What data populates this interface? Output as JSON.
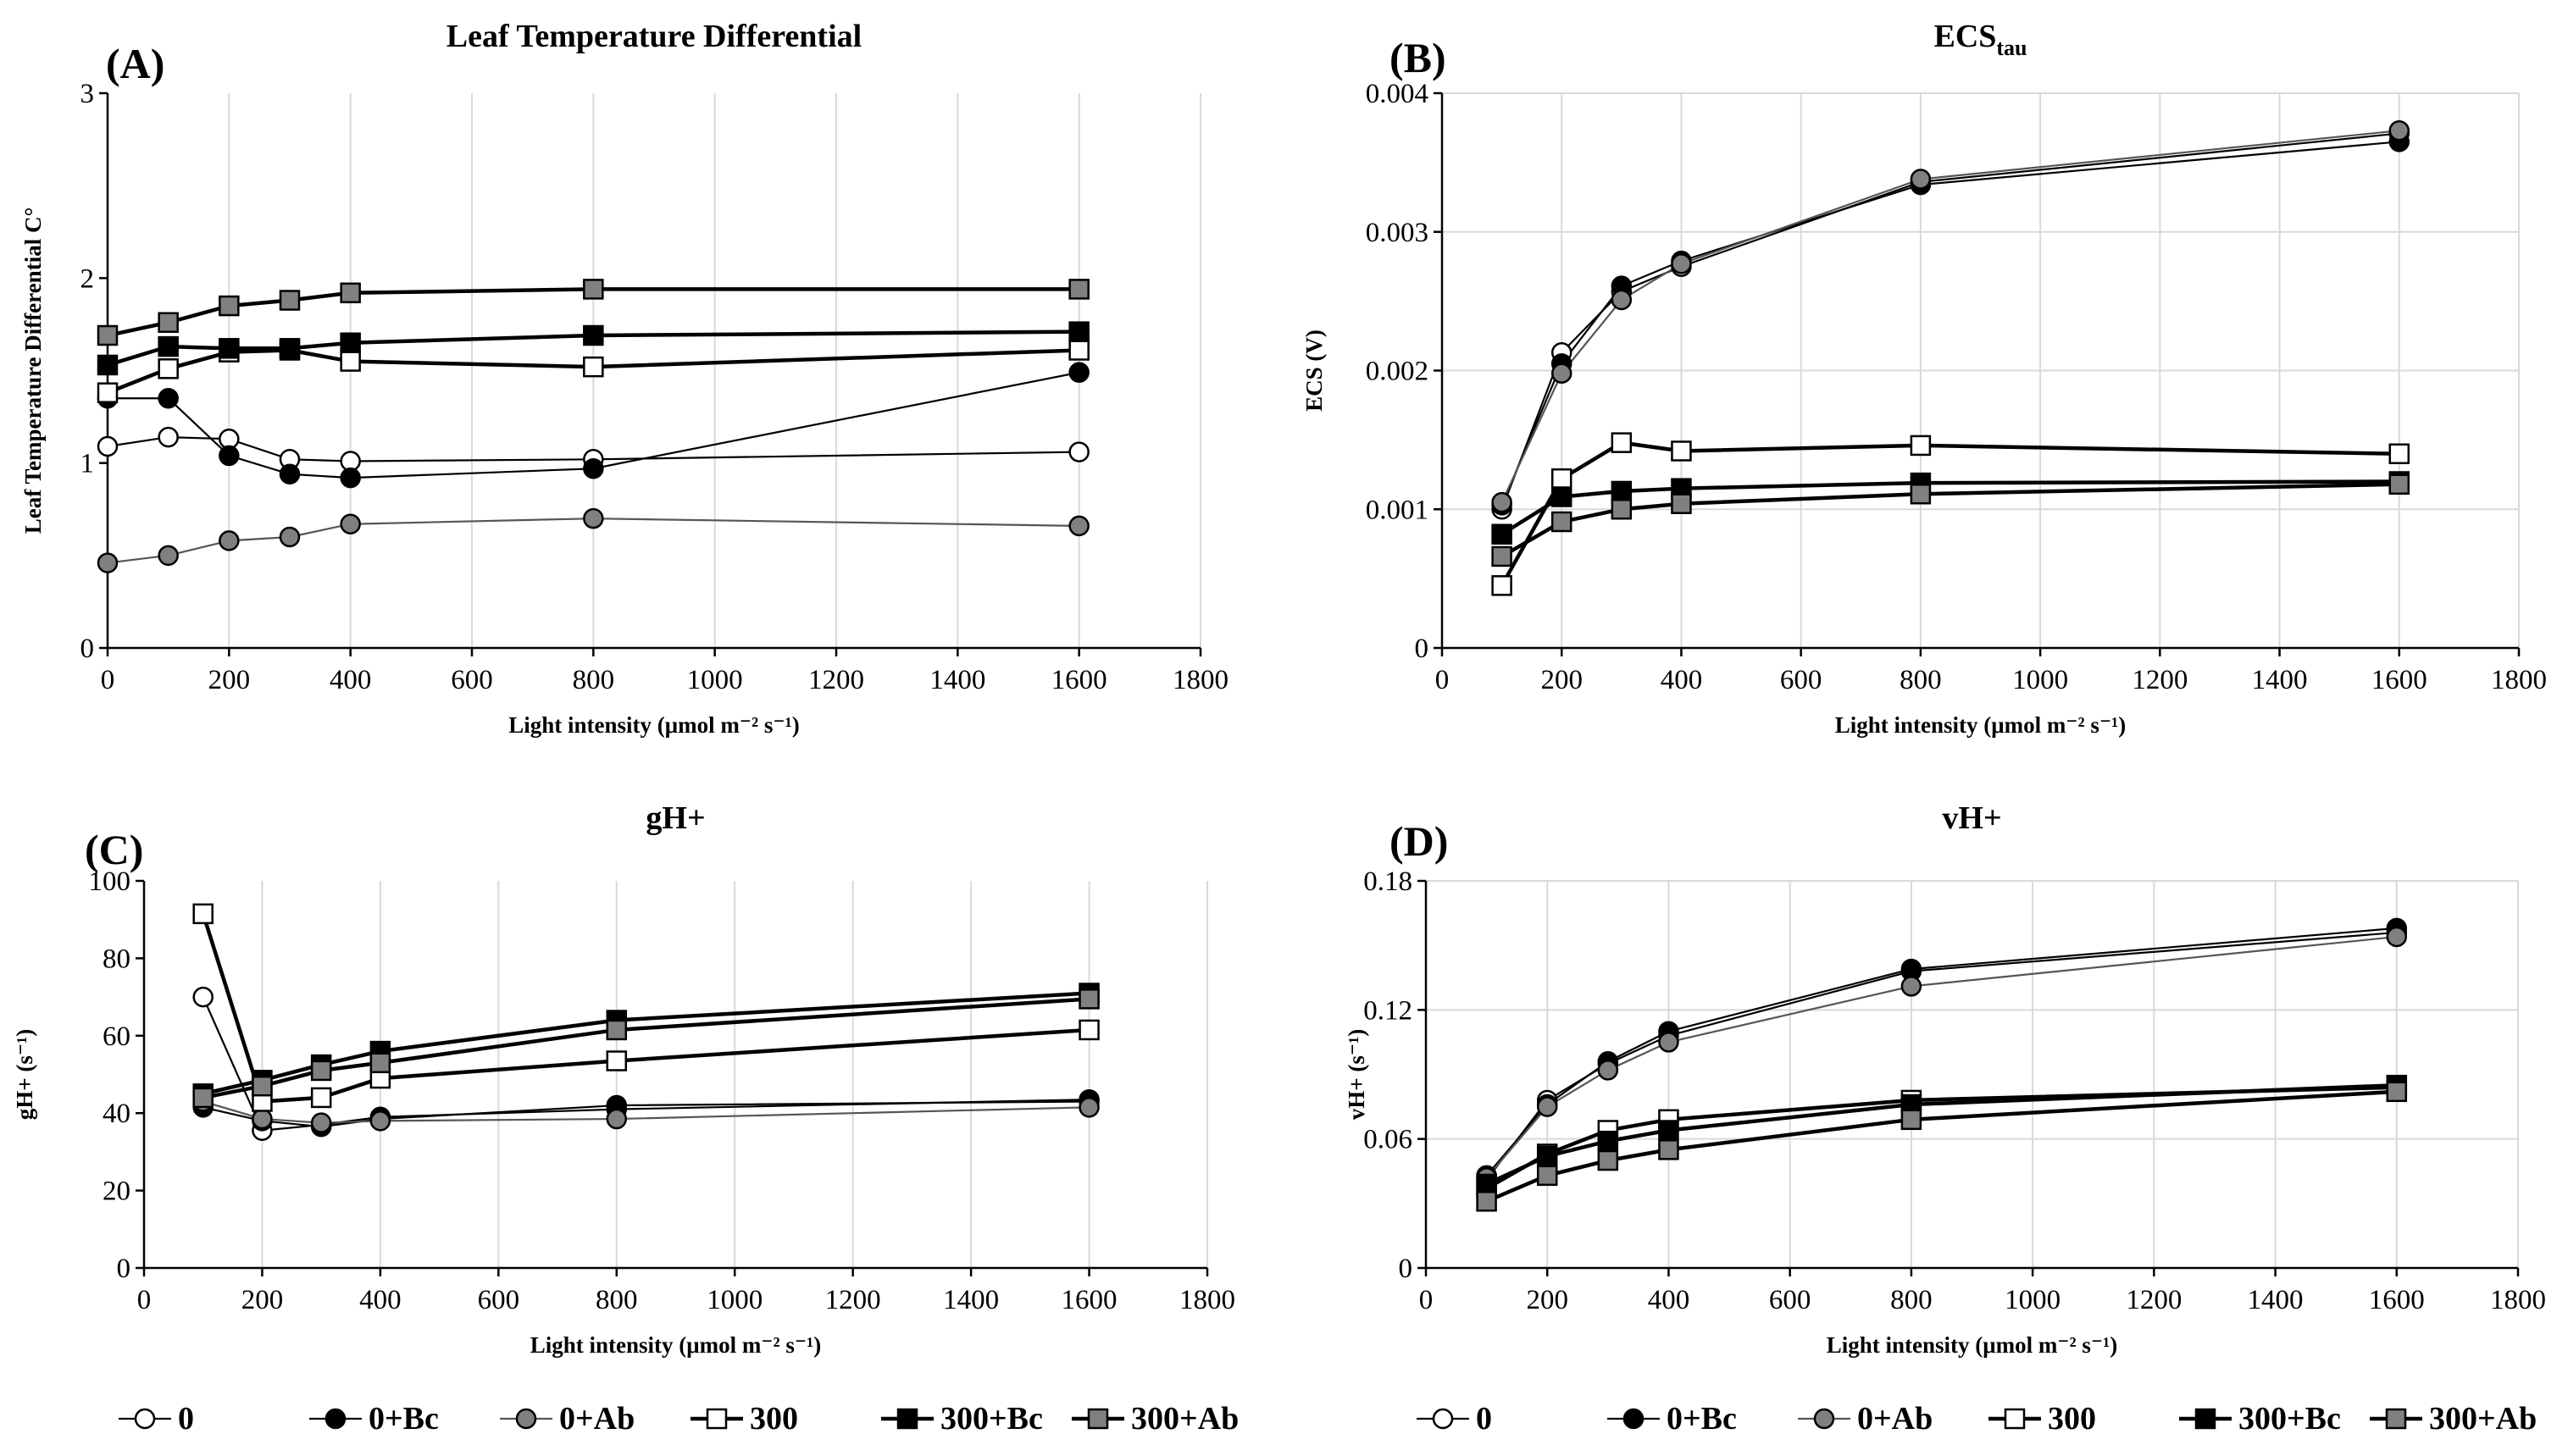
{
  "figure": {
    "legend_items": [
      "0",
      "0+Bc",
      "0+Ab",
      "300",
      "300+Bc",
      "300+Ab"
    ]
  },
  "series_styles": {
    "0": {
      "marker": "circle",
      "fill": "#ffffff",
      "line": "#000000"
    },
    "0+Bc": {
      "marker": "circle",
      "fill": "#000000",
      "line": "#000000"
    },
    "0+Ab": {
      "marker": "circle",
      "fill": "#808080",
      "line": "#555555"
    },
    "300": {
      "marker": "square",
      "fill": "#ffffff",
      "line": "#000000"
    },
    "300+Bc": {
      "marker": "square",
      "fill": "#000000",
      "line": "#000000"
    },
    "300+Ab": {
      "marker": "square",
      "fill": "#808080",
      "line": "#000000"
    }
  },
  "chart_data": [
    {
      "panel": "(A)",
      "type": "line",
      "title": "Leaf Temperature  Differential",
      "title_sub": "",
      "xlabel": "Light intensity (μmol m⁻² s⁻¹)",
      "ylabel": "Leaf Temperature Differential C°",
      "xlim": [
        0,
        1800
      ],
      "ylim": [
        0,
        3
      ],
      "xticks": [
        0,
        200,
        400,
        600,
        800,
        1000,
        1200,
        1400,
        1600,
        1800
      ],
      "yticks": [
        0,
        1,
        2,
        3
      ],
      "grid": "vertical",
      "series": [
        {
          "name": "0",
          "x": [
            0,
            100,
            200,
            300,
            400,
            800,
            1600
          ],
          "y": [
            1.09,
            1.14,
            1.13,
            1.02,
            1.01,
            1.02,
            1.06
          ]
        },
        {
          "name": "0+Bc",
          "x": [
            0,
            100,
            200,
            300,
            400,
            800,
            1600
          ],
          "y": [
            1.35,
            1.35,
            1.04,
            0.94,
            0.92,
            0.97,
            1.49
          ]
        },
        {
          "name": "0+Ab",
          "x": [
            0,
            100,
            200,
            300,
            400,
            800,
            1600
          ],
          "y": [
            0.46,
            0.5,
            0.58,
            0.6,
            0.67,
            0.7,
            0.66
          ]
        },
        {
          "name": "300",
          "x": [
            0,
            100,
            200,
            300,
            400,
            800,
            1600
          ],
          "y": [
            1.38,
            1.51,
            1.6,
            1.61,
            1.55,
            1.52,
            1.61
          ]
        },
        {
          "name": "300+Bc",
          "x": [
            0,
            100,
            200,
            300,
            400,
            800,
            1600
          ],
          "y": [
            1.53,
            1.63,
            1.62,
            1.62,
            1.65,
            1.69,
            1.71
          ]
        },
        {
          "name": "300+Ab",
          "x": [
            0,
            100,
            200,
            300,
            400,
            800,
            1600
          ],
          "y": [
            1.69,
            1.76,
            1.85,
            1.88,
            1.92,
            1.94,
            1.94
          ]
        }
      ]
    },
    {
      "panel": "(B)",
      "type": "line",
      "title": "ECS",
      "title_sub": "tau",
      "xlabel": "Light intensity (μmol m⁻² s⁻¹)",
      "ylabel": "ECS (V)",
      "xlim": [
        0,
        1800
      ],
      "ylim": [
        0,
        0.004
      ],
      "xticks": [
        0,
        200,
        400,
        600,
        800,
        1000,
        1200,
        1400,
        1600,
        1800
      ],
      "yticks": [
        0,
        0.001,
        0.002,
        0.003,
        0.004
      ],
      "grid": "both",
      "series": [
        {
          "name": "0",
          "x": [
            100,
            200,
            300,
            400,
            800,
            1600
          ],
          "y": [
            0.001,
            0.00213,
            0.00257,
            0.00275,
            0.00336,
            0.00371
          ]
        },
        {
          "name": "0+Bc",
          "x": [
            100,
            200,
            300,
            400,
            800,
            1600
          ],
          "y": [
            0.00103,
            0.00205,
            0.00261,
            0.00279,
            0.00334,
            0.00365
          ]
        },
        {
          "name": "0+Ab",
          "x": [
            100,
            200,
            300,
            400,
            800,
            1600
          ],
          "y": [
            0.00105,
            0.00198,
            0.00251,
            0.00277,
            0.00338,
            0.00373
          ]
        },
        {
          "name": "300",
          "x": [
            100,
            200,
            300,
            400,
            800,
            1600
          ],
          "y": [
            0.00045,
            0.00122,
            0.00148,
            0.00142,
            0.00146,
            0.0014
          ]
        },
        {
          "name": "300+Bc",
          "x": [
            100,
            200,
            300,
            400,
            800,
            1600
          ],
          "y": [
            0.00082,
            0.00109,
            0.00113,
            0.00115,
            0.00119,
            0.0012
          ]
        },
        {
          "name": "300+Ab",
          "x": [
            100,
            200,
            300,
            400,
            800,
            1600
          ],
          "y": [
            0.00066,
            0.00091,
            0.001,
            0.00104,
            0.00111,
            0.00118
          ]
        }
      ]
    },
    {
      "panel": "(C)",
      "type": "line",
      "title": "gH+",
      "title_sub": "",
      "xlabel": "Light intensity (μmol m⁻² s⁻¹)",
      "ylabel": "gH+ (s⁻¹)",
      "xlim": [
        0,
        1800
      ],
      "ylim": [
        0,
        100
      ],
      "xticks": [
        0,
        200,
        400,
        600,
        800,
        1000,
        1200,
        1400,
        1600,
        1800
      ],
      "yticks": [
        0,
        20,
        40,
        60,
        80,
        100
      ],
      "grid": "vertical",
      "series": [
        {
          "name": "0",
          "x": [
            100,
            200,
            300,
            400,
            800,
            1600
          ],
          "y": [
            70,
            35.5,
            37,
            39,
            41,
            43.5
          ]
        },
        {
          "name": "0+Bc",
          "x": [
            100,
            200,
            300,
            400,
            800,
            1600
          ],
          "y": [
            41.5,
            38,
            36.5,
            38.5,
            42,
            43
          ]
        },
        {
          "name": "0+Ab",
          "x": [
            100,
            200,
            300,
            400,
            800,
            1600
          ],
          "y": [
            43,
            38.5,
            37.5,
            38,
            38.5,
            41.5
          ]
        },
        {
          "name": "300",
          "x": [
            100,
            200,
            300,
            400,
            800,
            1600
          ],
          "y": [
            91.5,
            43,
            44,
            49,
            53.5,
            61.5
          ]
        },
        {
          "name": "300+Bc",
          "x": [
            100,
            200,
            300,
            400,
            800,
            1600
          ],
          "y": [
            45,
            48.5,
            52.5,
            56,
            64,
            71
          ]
        },
        {
          "name": "300+Ab",
          "x": [
            100,
            200,
            300,
            400,
            800,
            1600
          ],
          "y": [
            44,
            47,
            51,
            53,
            61.5,
            69.5
          ]
        }
      ]
    },
    {
      "panel": "(D)",
      "type": "line",
      "title": "vH+",
      "title_sub": "",
      "xlabel": "Light intensity (μmol m⁻² s⁻¹)",
      "ylabel": "vH+ (s⁻¹)",
      "xlim": [
        0,
        1800
      ],
      "ylim": [
        0,
        0.18
      ],
      "xticks": [
        0,
        200,
        400,
        600,
        800,
        1000,
        1200,
        1400,
        1600,
        1800
      ],
      "yticks": [
        0,
        0.06,
        0.12,
        0.18
      ],
      "grid": "both",
      "series": [
        {
          "name": "0",
          "x": [
            100,
            200,
            300,
            400,
            800,
            1600
          ],
          "y": [
            0.041,
            0.078,
            0.095,
            0.108,
            0.138,
            0.156
          ]
        },
        {
          "name": "0+Bc",
          "x": [
            100,
            200,
            300,
            400,
            800,
            1600
          ],
          "y": [
            0.043,
            0.076,
            0.096,
            0.11,
            0.139,
            0.158
          ]
        },
        {
          "name": "0+Ab",
          "x": [
            100,
            200,
            300,
            400,
            800,
            1600
          ],
          "y": [
            0.042,
            0.075,
            0.092,
            0.105,
            0.131,
            0.154
          ]
        },
        {
          "name": "300",
          "x": [
            100,
            200,
            300,
            400,
            800,
            1600
          ],
          "y": [
            0.037,
            0.053,
            0.064,
            0.069,
            0.078,
            0.084
          ]
        },
        {
          "name": "300+Bc",
          "x": [
            100,
            200,
            300,
            400,
            800,
            1600
          ],
          "y": [
            0.039,
            0.052,
            0.059,
            0.064,
            0.076,
            0.085
          ]
        },
        {
          "name": "300+Ab",
          "x": [
            100,
            200,
            300,
            400,
            800,
            1600
          ],
          "y": [
            0.031,
            0.043,
            0.05,
            0.055,
            0.069,
            0.082
          ]
        }
      ]
    }
  ]
}
